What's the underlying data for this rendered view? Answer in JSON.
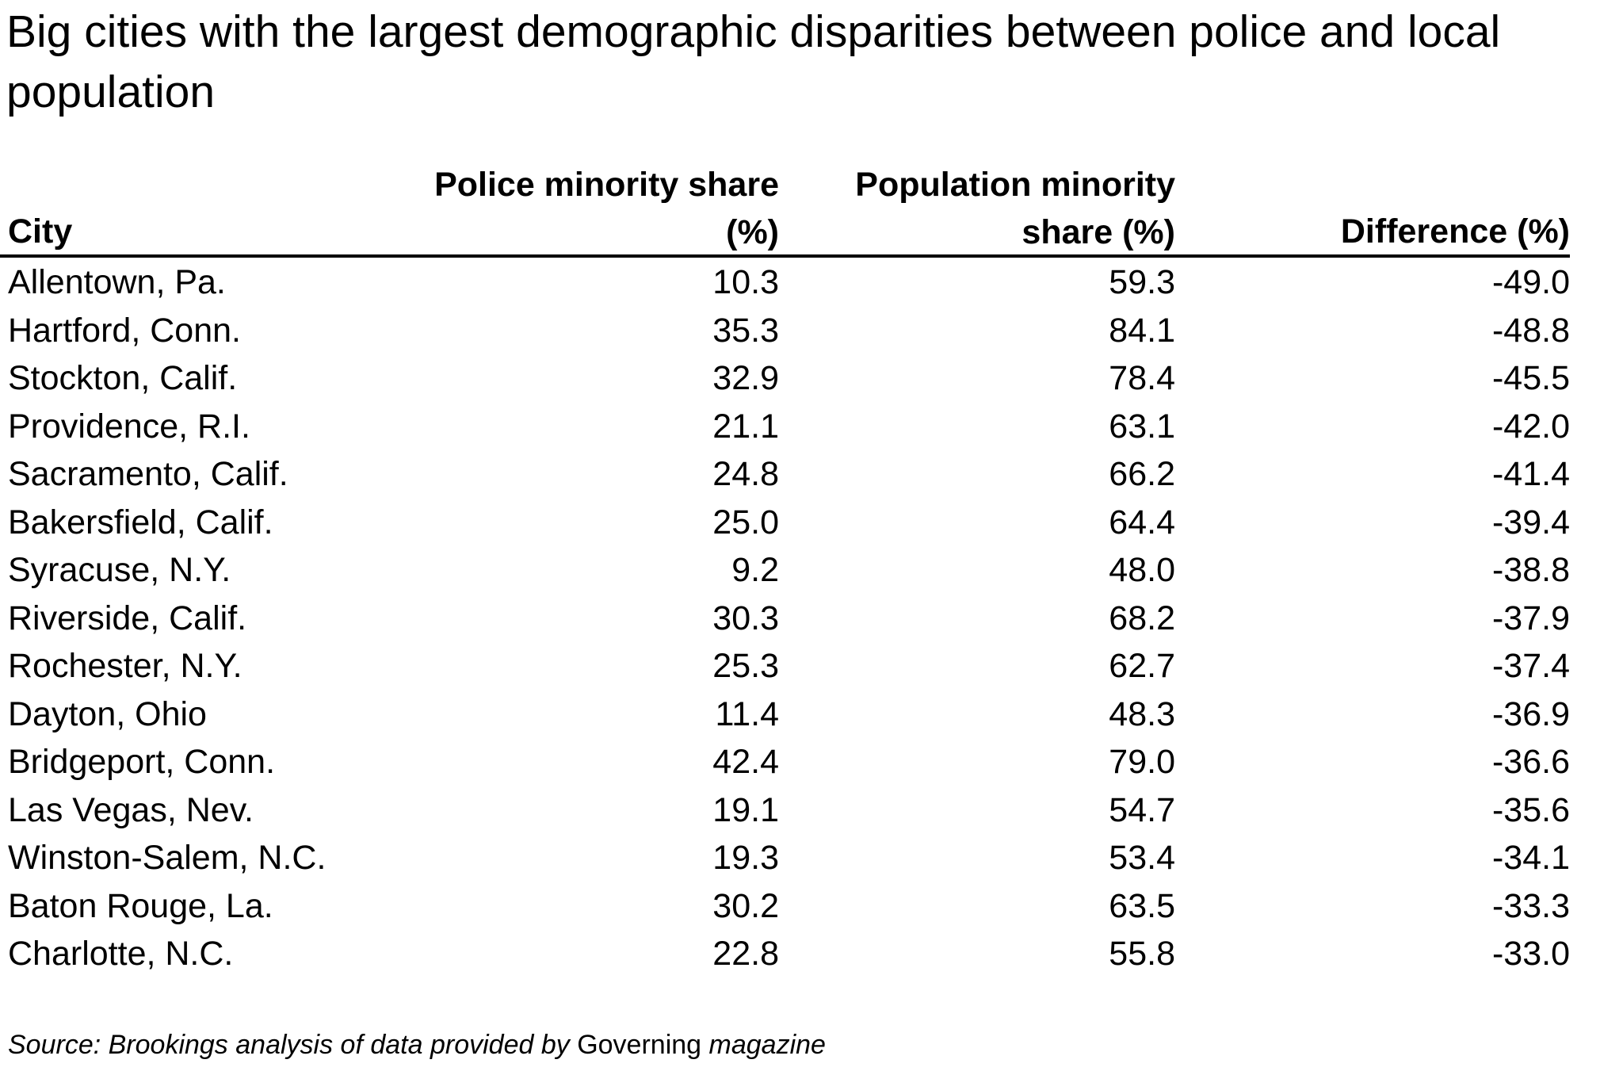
{
  "chart_data": {
    "type": "table",
    "title": "Big cities with the largest demographic disparities between police and local population",
    "columns": [
      {
        "line1": "",
        "line2": "City"
      },
      {
        "line1": "Police minority share",
        "line2": "(%)"
      },
      {
        "line1": "Population minority",
        "line2": "share (%)"
      },
      {
        "line1": "",
        "line2": "Difference (%)"
      }
    ],
    "rows": [
      {
        "city": "Allentown, Pa.",
        "police": "10.3",
        "population": "59.3",
        "difference": "-49.0"
      },
      {
        "city": "Hartford, Conn.",
        "police": "35.3",
        "population": "84.1",
        "difference": "-48.8"
      },
      {
        "city": "Stockton, Calif.",
        "police": "32.9",
        "population": "78.4",
        "difference": "-45.5"
      },
      {
        "city": "Providence, R.I.",
        "police": "21.1",
        "population": "63.1",
        "difference": "-42.0"
      },
      {
        "city": "Sacramento, Calif.",
        "police": "24.8",
        "population": "66.2",
        "difference": "-41.4"
      },
      {
        "city": "Bakersfield, Calif.",
        "police": "25.0",
        "population": "64.4",
        "difference": "-39.4"
      },
      {
        "city": "Syracuse, N.Y.",
        "police": "9.2",
        "population": "48.0",
        "difference": "-38.8"
      },
      {
        "city": "Riverside, Calif.",
        "police": "30.3",
        "population": "68.2",
        "difference": "-37.9"
      },
      {
        "city": "Rochester, N.Y.",
        "police": "25.3",
        "population": "62.7",
        "difference": "-37.4"
      },
      {
        "city": "Dayton, Ohio",
        "police": "11.4",
        "population": "48.3",
        "difference": "-36.9"
      },
      {
        "city": "Bridgeport, Conn.",
        "police": "42.4",
        "population": "79.0",
        "difference": "-36.6"
      },
      {
        "city": "Las Vegas, Nev.",
        "police": "19.1",
        "population": "54.7",
        "difference": "-35.6"
      },
      {
        "city": "Winston-Salem, N.C.",
        "police": "19.3",
        "population": "53.4",
        "difference": "-34.1"
      },
      {
        "city": "Baton Rouge, La.",
        "police": "30.2",
        "population": "63.5",
        "difference": "-33.3"
      },
      {
        "city": "Charlotte, N.C.",
        "police": "22.8",
        "population": "55.8",
        "difference": "-33.0"
      }
    ],
    "source": {
      "prefix": "Source: Brookings analysis of data provided by",
      "publication": "Governing",
      "suffix": "magazine"
    }
  }
}
